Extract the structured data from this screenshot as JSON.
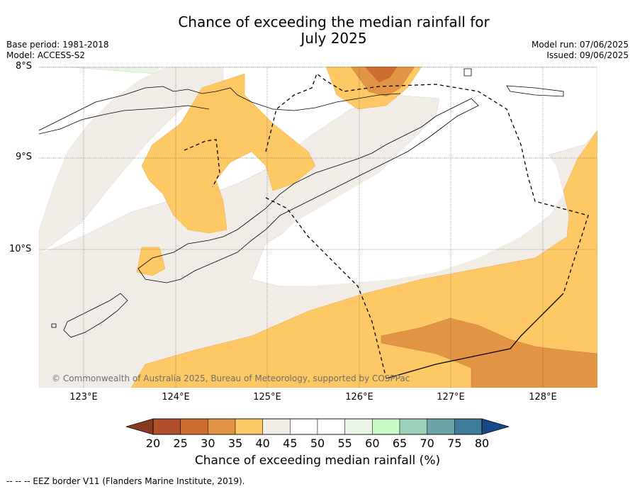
{
  "title_line1": "Chance of exceeding the median rainfall for",
  "title_line2": "July 2025",
  "base_period": "Base period: 1981-2018",
  "model": "Model: ACCESS-S2",
  "model_run": "Model run: 07/06/2025",
  "issued": "Issued: 09/06/2025",
  "lat_labels": [
    "8°S",
    "9°S",
    "10°S"
  ],
  "lon_labels": [
    "123°E",
    "124°E",
    "125°E",
    "126°E",
    "127°E",
    "128°E"
  ],
  "copyright": "© Commonwealth of Australia 2025, Bureau of Meteorology, supported by COSPPac",
  "colorbar": {
    "ticks": [
      "20",
      "25",
      "30",
      "35",
      "40",
      "45",
      "50",
      "55",
      "60",
      "65",
      "70",
      "75",
      "80"
    ],
    "label": "Chance of exceeding median rainfall (%)",
    "colors": [
      "#b1502a",
      "#cd6d32",
      "#e09444",
      "#fec965",
      "#f1ece6",
      "#ffffff",
      "#ffffff",
      "#e9f4e6",
      "#c9fcc7",
      "#9dd0b8",
      "#6ba4a6",
      "#3e7b9b"
    ],
    "under_color": "#8a3a20",
    "over_color": "#174a86"
  },
  "footnote": "-- -- -- EEZ border V11 (Flanders Marine Institute, 2019).",
  "map_colors": {
    "ocean_grey": "#f1ece6",
    "orange_35_40": "#fec965",
    "orange_30_35": "#e09444",
    "orange_25_30": "#cd6d32",
    "green_55_60": "#e9f4e6"
  }
}
